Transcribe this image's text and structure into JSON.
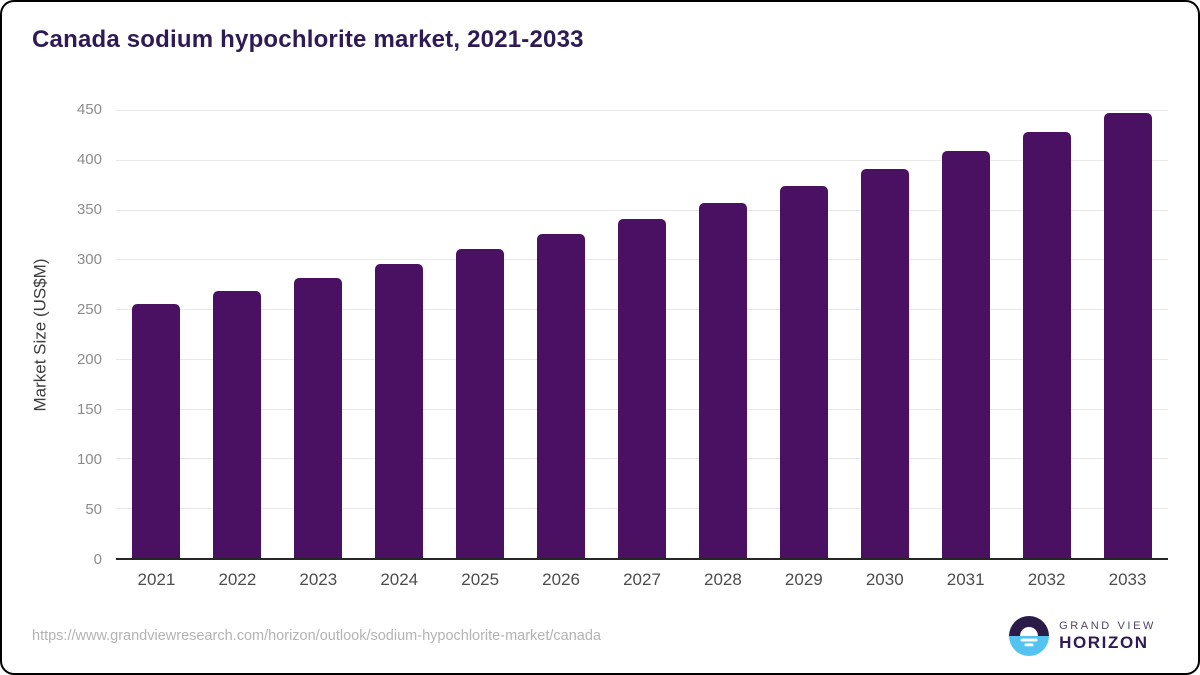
{
  "chart_data": {
    "type": "bar",
    "title": "Canada sodium hypochlorite market, 2021-2033",
    "categories": [
      "2021",
      "2022",
      "2023",
      "2024",
      "2025",
      "2026",
      "2027",
      "2028",
      "2029",
      "2030",
      "2031",
      "2032",
      "2033"
    ],
    "values": [
      255,
      268,
      281,
      295,
      310,
      325,
      341,
      357,
      374,
      391,
      409,
      428,
      447
    ],
    "xlabel": "",
    "ylabel": "Market Size (US$M)",
    "ylim": [
      0,
      450
    ],
    "yticks": [
      0,
      50,
      100,
      150,
      200,
      250,
      300,
      350,
      400,
      450
    ],
    "grid": "horizontal",
    "legend": "none",
    "bar_color": "#4a1162"
  },
  "footer": {
    "source_url": "https://www.grandviewresearch.com/horizon/outlook/sodium-hypochlorite-market/canada",
    "logo": {
      "line1": "GRAND VIEW",
      "line2": "HORIZON"
    }
  },
  "colors": {
    "bar": "#4a1162",
    "title": "#2e1a54",
    "gridline": "#e9e9e9",
    "axis_line": "#262626",
    "y_tick": "#8c8c8c",
    "x_tick": "#4d4d4d",
    "url": "#b3b3b3",
    "logo_dark": "#2b1b48",
    "logo_blue": "#55c3f1"
  }
}
